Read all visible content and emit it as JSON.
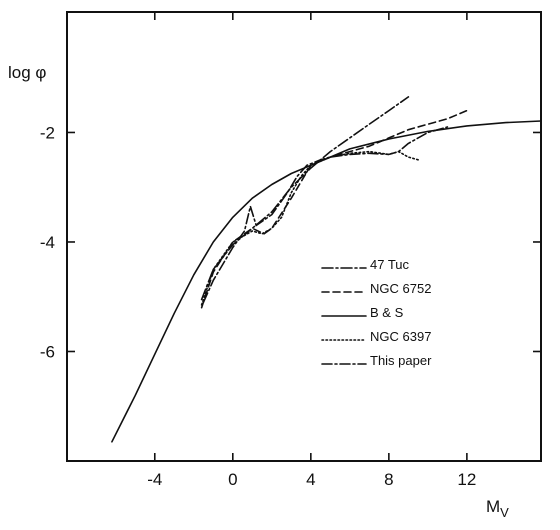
{
  "chart_data": {
    "type": "line",
    "xlabel": "M",
    "xlabel_sub": "V",
    "ylabel": "log φ",
    "xlim": [
      -8.5,
      15.8
    ],
    "ylim": [
      -8.0,
      0.2
    ],
    "xticks": [
      -4,
      0,
      4,
      8,
      12
    ],
    "xtick_labels": [
      "-4",
      "0",
      "4",
      "8",
      "12"
    ],
    "yticks": [
      -2,
      -4,
      -6
    ],
    "ytick_labels": [
      "-2",
      "-4",
      "-6"
    ],
    "grid": false,
    "legend_position": "lower-right",
    "series": [
      {
        "name": "47 Tuc",
        "dash": "11 3 2 3",
        "points": [
          [
            -1.6,
            -5.05
          ],
          [
            -1.0,
            -4.5
          ],
          [
            0.0,
            -4.05
          ],
          [
            1.0,
            -3.75
          ],
          [
            2.0,
            -3.45
          ],
          [
            3.0,
            -3.0
          ],
          [
            4.0,
            -2.65
          ],
          [
            5.0,
            -2.35
          ],
          [
            6.0,
            -2.1
          ],
          [
            7.0,
            -1.85
          ],
          [
            8.0,
            -1.6
          ],
          [
            9.0,
            -1.35
          ]
        ]
      },
      {
        "name": "NGC 6752",
        "dash": "7 4",
        "points": [
          [
            -1.6,
            -5.2
          ],
          [
            -1.0,
            -4.55
          ],
          [
            0.0,
            -4.0
          ],
          [
            1.0,
            -3.75
          ],
          [
            1.6,
            -3.85
          ],
          [
            2.0,
            -3.75
          ],
          [
            3.0,
            -3.2
          ],
          [
            4.0,
            -2.6
          ],
          [
            5.0,
            -2.45
          ],
          [
            6.0,
            -2.35
          ],
          [
            7.0,
            -2.25
          ],
          [
            8.0,
            -2.1
          ],
          [
            9.0,
            -1.95
          ],
          [
            10.0,
            -1.85
          ],
          [
            11.0,
            -1.75
          ],
          [
            12.0,
            -1.6
          ]
        ]
      },
      {
        "name": "B & S",
        "dash": "",
        "points": [
          [
            -6.2,
            -7.65
          ],
          [
            -5.0,
            -6.8
          ],
          [
            -4.0,
            -6.05
          ],
          [
            -3.0,
            -5.3
          ],
          [
            -2.0,
            -4.6
          ],
          [
            -1.0,
            -4.0
          ],
          [
            0.0,
            -3.55
          ],
          [
            1.0,
            -3.2
          ],
          [
            2.0,
            -2.95
          ],
          [
            3.0,
            -2.75
          ],
          [
            4.0,
            -2.6
          ],
          [
            5.0,
            -2.45
          ],
          [
            6.0,
            -2.3
          ],
          [
            8.0,
            -2.12
          ],
          [
            10.0,
            -1.98
          ],
          [
            12.0,
            -1.88
          ],
          [
            14.0,
            -1.82
          ],
          [
            15.8,
            -1.79
          ]
        ]
      },
      {
        "name": "NGC 6397",
        "dash": "1.5 2.5",
        "points": [
          [
            -1.6,
            -5.15
          ],
          [
            -1.0,
            -4.5
          ],
          [
            0.0,
            -4.0
          ],
          [
            1.0,
            -3.8
          ],
          [
            1.5,
            -3.85
          ],
          [
            2.0,
            -3.75
          ],
          [
            2.5,
            -3.55
          ],
          [
            3.0,
            -3.1
          ],
          [
            3.5,
            -2.8
          ],
          [
            4.0,
            -2.6
          ],
          [
            5.0,
            -2.45
          ],
          [
            6.0,
            -2.38
          ],
          [
            7.0,
            -2.35
          ],
          [
            8.0,
            -2.4
          ],
          [
            8.5,
            -2.35
          ],
          [
            9.0,
            -2.45
          ],
          [
            9.5,
            -2.5
          ]
        ]
      },
      {
        "name": "This paper",
        "dash": "10 3 2 3",
        "points": [
          [
            -1.5,
            -5.1
          ],
          [
            -1.0,
            -4.7
          ],
          [
            0.0,
            -4.1
          ],
          [
            0.6,
            -3.8
          ],
          [
            0.9,
            -3.35
          ],
          [
            1.2,
            -3.7
          ],
          [
            2.0,
            -3.5
          ],
          [
            2.8,
            -3.1
          ],
          [
            3.3,
            -2.8
          ],
          [
            3.8,
            -2.6
          ],
          [
            4.5,
            -2.5
          ],
          [
            5.0,
            -2.45
          ],
          [
            6.0,
            -2.4
          ],
          [
            7.0,
            -2.38
          ],
          [
            8.0,
            -2.4
          ],
          [
            8.5,
            -2.35
          ],
          [
            9.0,
            -2.2
          ],
          [
            10.0,
            -2.0
          ],
          [
            11.0,
            -1.9
          ]
        ]
      }
    ]
  }
}
